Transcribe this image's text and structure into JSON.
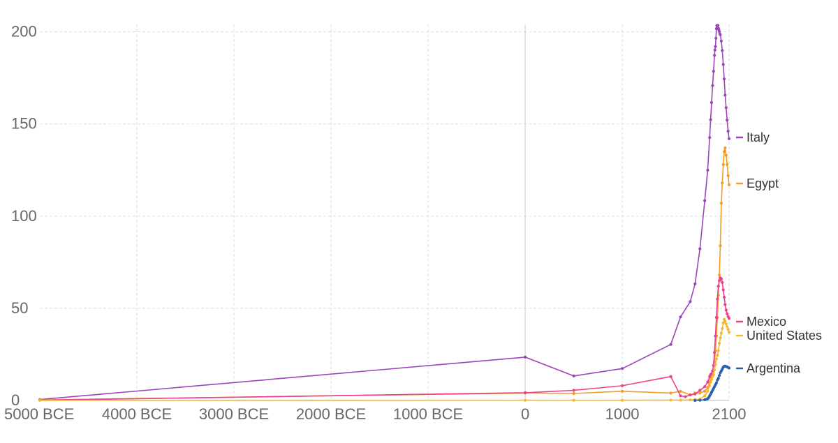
{
  "chart_data": {
    "type": "line",
    "x_tick_labels": [
      "5000 BCE",
      "4000 BCE",
      "3000 BCE",
      "2000 BCE",
      "1000 BCE",
      "0",
      "1000",
      "2100"
    ],
    "x_tick_values": [
      -5000,
      -4000,
      -3000,
      -2000,
      -1000,
      0,
      1000,
      2100
    ],
    "y_tick_labels": [
      "0",
      "50",
      "100",
      "150",
      "200"
    ],
    "y_tick_values": [
      0,
      50,
      100,
      150,
      200
    ],
    "xlim": [
      -5000,
      2100
    ],
    "ylim": [
      0,
      204
    ],
    "grid": true,
    "legend_placement": "right",
    "series": [
      {
        "name": "Italy",
        "color": "#9b46b8",
        "x": [
          -5000,
          0,
          500,
          1000,
          1500,
          1600,
          1700,
          1750,
          1800,
          1850,
          1880,
          1900,
          1910,
          1920,
          1930,
          1940,
          1950,
          1955,
          1960,
          1965,
          1970,
          1975,
          1980,
          1985,
          1990,
          1995,
          2000,
          2005,
          2010,
          2020,
          2030,
          2040,
          2050,
          2060,
          2070,
          2080,
          2090,
          2100
        ],
        "y": [
          0.5,
          23.5,
          13.3,
          17.3,
          30.4,
          45.3,
          53.6,
          63.3,
          82.3,
          108.4,
          124.9,
          142.6,
          152.3,
          161.6,
          170.8,
          178.6,
          187.2,
          190.1,
          192.0,
          196.5,
          201.7,
          203.4,
          203.3,
          203.5,
          201.9,
          201.1,
          200.1,
          198.8,
          198.4,
          195.0,
          189.8,
          182.3,
          174.4,
          165.7,
          158.8,
          152.1,
          146.1,
          142.0
        ]
      },
      {
        "name": "Egypt",
        "color": "#f39c24",
        "x": [
          -5000,
          0,
          500,
          1000,
          1500,
          1600,
          1700,
          1750,
          1800,
          1850,
          1880,
          1900,
          1910,
          1920,
          1930,
          1940,
          1950,
          1960,
          1970,
          1980,
          1990,
          2000,
          2010,
          2020,
          2030,
          2040,
          2050,
          2060,
          2070,
          2080,
          2090,
          2100
        ],
        "y": [
          0.3,
          4.0,
          3.8,
          5.0,
          4.0,
          5.0,
          3.0,
          4.0,
          4.0,
          5.0,
          7.0,
          10.0,
          12.0,
          14.0,
          16.0,
          19.0,
          21.0,
          27.0,
          35.0,
          45.0,
          57.0,
          68.0,
          84.0,
          107.0,
          118.0,
          128.0,
          135.0,
          137.0,
          133.0,
          128.0,
          122.0,
          117.0
        ]
      },
      {
        "name": "Mexico",
        "color": "#ec3f8e",
        "x": [
          -5000,
          0,
          500,
          1000,
          1500,
          1600,
          1650,
          1700,
          1750,
          1800,
          1850,
          1880,
          1900,
          1910,
          1920,
          1930,
          1940,
          1950,
          1960,
          1970,
          1980,
          1990,
          2000,
          2010,
          2020,
          2030,
          2040,
          2050,
          2060,
          2070,
          2080,
          2090,
          2100
        ],
        "y": [
          0.1,
          4.2,
          5.5,
          8.0,
          13.0,
          2.5,
          2.0,
          3.0,
          3.5,
          5.5,
          7.5,
          10.0,
          13.0,
          14.0,
          14.5,
          16.0,
          19.0,
          26.0,
          35.0,
          45.0,
          55.0,
          62.0,
          65.0,
          66.5,
          66.0,
          64.0,
          60.0,
          56.0,
          52.0,
          49.0,
          47.0,
          45.5,
          44.5
        ]
      },
      {
        "name": "United States",
        "color": "#f5b82e",
        "x": [
          -5000,
          0,
          500,
          1000,
          1500,
          1600,
          1700,
          1750,
          1800,
          1850,
          1880,
          1900,
          1910,
          1920,
          1930,
          1940,
          1950,
          1960,
          1970,
          1980,
          1990,
          2000,
          2010,
          2020,
          2030,
          2040,
          2050,
          2060,
          2070,
          2080,
          2090,
          2100
        ],
        "y": [
          0.05,
          0.1,
          0.1,
          0.1,
          0.2,
          0.2,
          0.3,
          0.5,
          0.7,
          2.5,
          5.0,
          8.0,
          10.0,
          11.5,
          13.0,
          14.0,
          16.5,
          19.5,
          22.5,
          24.5,
          27.0,
          31.0,
          34.0,
          36.5,
          39.0,
          42.0,
          44.0,
          43.0,
          41.5,
          40.0,
          38.5,
          37.0
        ]
      },
      {
        "name": "Argentina",
        "color": "#2b5fae",
        "x": [
          1750,
          1800,
          1850,
          1870,
          1880,
          1890,
          1900,
          1910,
          1920,
          1930,
          1940,
          1950,
          1960,
          1970,
          1980,
          1990,
          2000,
          2010,
          2020,
          2030,
          2040,
          2050,
          2060,
          2070,
          2080,
          2090,
          2100
        ],
        "y": [
          0.0,
          0.1,
          0.4,
          0.7,
          1.0,
          1.5,
          2.5,
          3.5,
          4.5,
          5.5,
          6.5,
          7.5,
          8.5,
          9.5,
          11.0,
          12.0,
          13.5,
          15.0,
          16.0,
          17.0,
          18.0,
          18.5,
          18.6,
          18.4,
          18.2,
          17.9,
          17.6
        ]
      }
    ]
  }
}
